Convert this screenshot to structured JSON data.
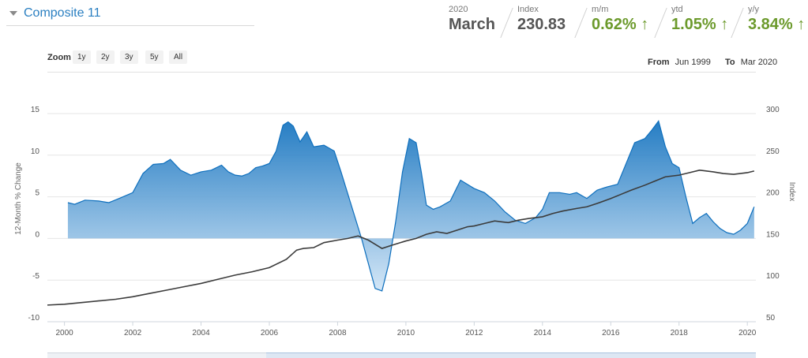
{
  "header": {
    "title": "Composite 11"
  },
  "stats": [
    {
      "label": "2020",
      "value": "March",
      "style": "dark"
    },
    {
      "label": "Index",
      "value": "230.83",
      "style": "dark"
    },
    {
      "label": "m/m",
      "value": "0.62% ↑",
      "style": "green"
    },
    {
      "label": "ytd",
      "value": "1.05% ↑",
      "style": "green"
    },
    {
      "label": "y/y",
      "value": "3.84% ↑",
      "style": "green"
    }
  ],
  "zoom": {
    "label": "Zoom",
    "buttons": [
      "1y",
      "2y",
      "3y",
      "5y",
      "All"
    ]
  },
  "range": {
    "from_label": "From",
    "from_value": "Jun 1999",
    "to_label": "To",
    "to_value": "Mar 2020"
  },
  "colors": {
    "area_top": "#0e6fbd",
    "area_bottom": "#cfe4f6",
    "line": "#3b3b3b",
    "accent": "#2a7fc1",
    "positive": "#6c9a2c"
  },
  "chart_data": {
    "type": "area",
    "xlabel": "",
    "ylabel_left": "12-Month % Change",
    "ylabel_right": "Index",
    "x_range": [
      1999.5,
      2020.25
    ],
    "y_left_range": [
      -10,
      15
    ],
    "y_right_range": [
      50,
      300
    ],
    "x_ticks": [
      "2000",
      "2002",
      "2004",
      "2006",
      "2008",
      "2010",
      "2012",
      "2014",
      "2016",
      "2018",
      "2020"
    ],
    "y_left_ticks": [
      "15",
      "10",
      "5",
      "0",
      "-5",
      "-10"
    ],
    "y_right_ticks": [
      "300",
      "250",
      "200",
      "150",
      "100",
      "50"
    ],
    "grid": true,
    "legend": "none",
    "series": [
      {
        "type": "area",
        "axis": "left",
        "x": [
          2000.1,
          2000.3,
          2000.6,
          2001.0,
          2001.3,
          2001.6,
          2002.0,
          2002.3,
          2002.6,
          2002.9,
          2003.1,
          2003.4,
          2003.7,
          2004.0,
          2004.3,
          2004.6,
          2004.8,
          2005.0,
          2005.2,
          2005.4,
          2005.6,
          2005.8,
          2006.0,
          2006.2,
          2006.4,
          2006.55,
          2006.7,
          2006.9,
          2007.1,
          2007.3,
          2007.6,
          2007.9,
          2008.1,
          2008.4,
          2008.7,
          2008.9,
          2009.1,
          2009.3,
          2009.5,
          2009.7,
          2009.9,
          2010.1,
          2010.3,
          2010.45,
          2010.6,
          2010.8,
          2011.0,
          2011.3,
          2011.6,
          2011.8,
          2012.0,
          2012.3,
          2012.6,
          2012.9,
          2013.2,
          2013.5,
          2013.8,
          2014.0,
          2014.2,
          2014.5,
          2014.8,
          2015.0,
          2015.3,
          2015.6,
          2015.9,
          2016.2,
          2016.5,
          2016.7,
          2017.0,
          2017.2,
          2017.4,
          2017.6,
          2017.8,
          2018.0,
          2018.2,
          2018.4,
          2018.6,
          2018.8,
          2019.0,
          2019.2,
          2019.4,
          2019.6,
          2019.8,
          2020.0,
          2020.2
        ],
        "values": [
          4.3,
          4.1,
          4.6,
          4.5,
          4.3,
          4.8,
          5.5,
          7.8,
          8.9,
          9.0,
          9.5,
          8.2,
          7.6,
          8.0,
          8.2,
          8.8,
          8.0,
          7.6,
          7.5,
          7.8,
          8.5,
          8.7,
          9.0,
          10.5,
          13.6,
          14.0,
          13.5,
          11.6,
          12.8,
          11.0,
          11.2,
          10.5,
          8.0,
          4.0,
          0.0,
          -3.0,
          -6.0,
          -6.3,
          -3.0,
          2.0,
          8.0,
          12.0,
          11.5,
          8.0,
          4.0,
          3.5,
          3.8,
          4.5,
          7.0,
          6.5,
          6.0,
          5.5,
          4.5,
          3.2,
          2.2,
          1.8,
          2.5,
          3.5,
          5.5,
          5.5,
          5.3,
          5.5,
          4.8,
          5.8,
          6.2,
          6.5,
          9.5,
          11.5,
          12.0,
          13.0,
          14.1,
          11.0,
          9.0,
          8.5,
          5.0,
          1.8,
          2.5,
          3.0,
          2.0,
          1.2,
          0.7,
          0.5,
          1.0,
          1.8,
          3.8
        ]
      },
      {
        "type": "line",
        "axis": "right",
        "x": [
          1999.5,
          2000.0,
          2000.5,
          2001.0,
          2001.5,
          2002.0,
          2002.5,
          2003.0,
          2003.5,
          2004.0,
          2004.5,
          2005.0,
          2005.5,
          2006.0,
          2006.5,
          2006.8,
          2007.0,
          2007.3,
          2007.6,
          2008.0,
          2008.3,
          2008.6,
          2008.9,
          2009.1,
          2009.3,
          2009.6,
          2010.0,
          2010.3,
          2010.6,
          2010.9,
          2011.2,
          2011.5,
          2011.8,
          2012.0,
          2012.3,
          2012.6,
          2013.0,
          2013.3,
          2013.6,
          2014.0,
          2014.3,
          2014.6,
          2015.0,
          2015.3,
          2015.6,
          2016.0,
          2016.3,
          2016.6,
          2017.0,
          2017.3,
          2017.6,
          2018.0,
          2018.3,
          2018.6,
          2019.0,
          2019.3,
          2019.6,
          2020.0,
          2020.2
        ],
        "values": [
          70,
          71,
          73,
          75,
          77,
          80,
          84,
          88,
          92,
          96,
          101,
          106,
          110,
          115,
          125,
          136,
          138,
          139,
          145,
          148,
          150,
          153,
          148,
          143,
          138,
          142,
          147,
          150,
          155,
          158,
          156,
          160,
          164,
          165,
          168,
          171,
          169,
          172,
          174,
          176,
          180,
          183,
          186,
          188,
          192,
          198,
          203,
          208,
          214,
          219,
          224,
          226,
          229,
          232,
          230,
          228,
          227,
          229,
          231
        ]
      }
    ]
  }
}
